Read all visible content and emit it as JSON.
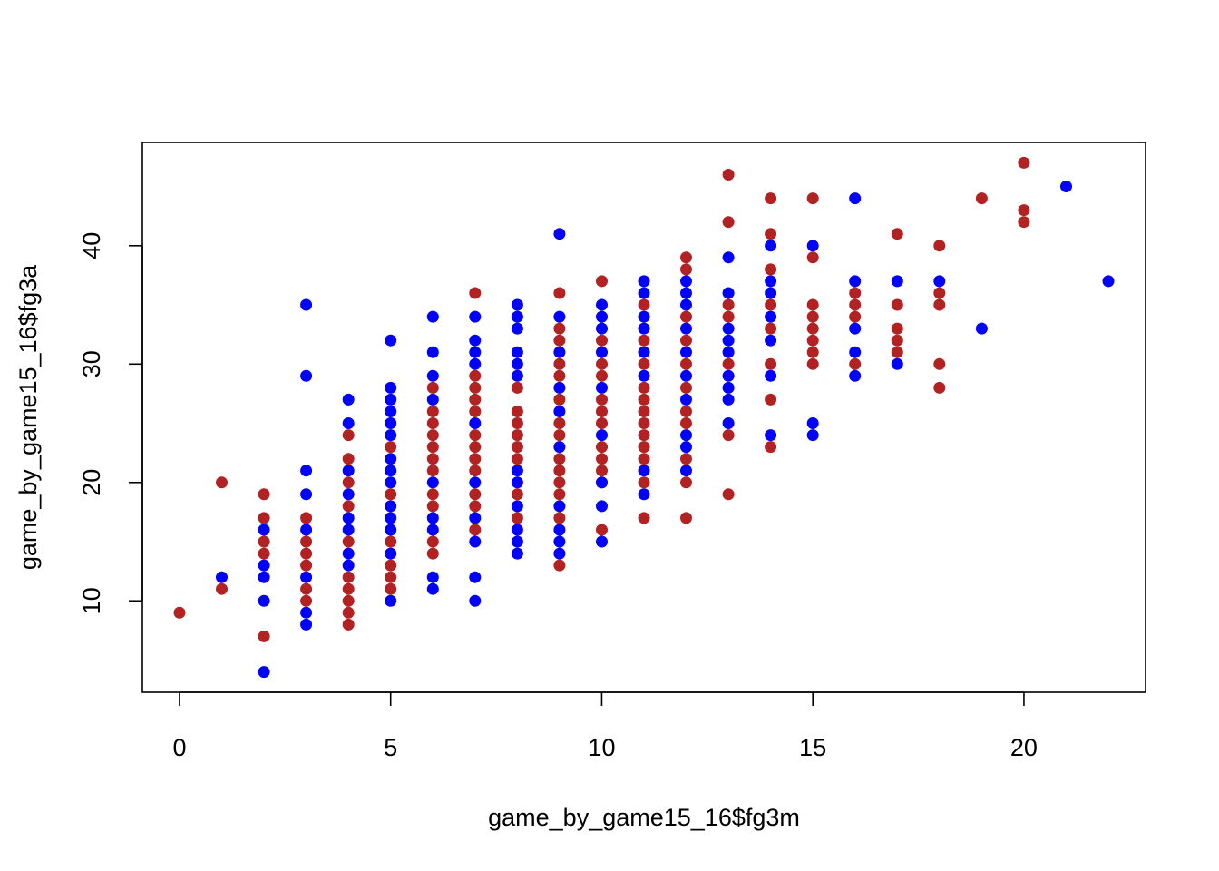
{
  "chart_data": {
    "type": "scatter",
    "title": "",
    "xlabel": "game_by_game15_16$fg3m",
    "ylabel": "game_by_game15_16$fg3a",
    "xlim": [
      -0.88,
      22.88
    ],
    "ylim": [
      2.28,
      48.72
    ],
    "xticks": [
      0,
      5,
      10,
      15,
      20
    ],
    "yticks": [
      10,
      20,
      30,
      40
    ],
    "grid": false,
    "legend": "none",
    "series": [
      {
        "color": "#B22222",
        "points": [
          [
            0,
            9
          ],
          [
            1,
            20
          ],
          [
            1,
            11
          ],
          [
            2,
            19
          ],
          [
            2,
            17
          ],
          [
            2,
            15
          ],
          [
            2,
            14
          ],
          [
            2,
            12
          ],
          [
            2,
            7
          ],
          [
            3,
            17
          ],
          [
            3,
            15
          ],
          [
            3,
            14
          ],
          [
            3,
            13
          ],
          [
            3,
            11
          ],
          [
            3,
            10
          ],
          [
            4,
            24
          ],
          [
            4,
            22
          ],
          [
            4,
            20
          ],
          [
            4,
            18
          ],
          [
            4,
            15
          ],
          [
            4,
            12
          ],
          [
            4,
            11
          ],
          [
            4,
            10
          ],
          [
            4,
            9
          ],
          [
            4,
            8
          ],
          [
            5,
            23
          ],
          [
            5,
            19
          ],
          [
            5,
            15
          ],
          [
            5,
            13
          ],
          [
            5,
            12
          ],
          [
            5,
            11
          ],
          [
            6,
            28
          ],
          [
            6,
            26
          ],
          [
            6,
            25
          ],
          [
            6,
            24
          ],
          [
            6,
            23
          ],
          [
            6,
            22
          ],
          [
            6,
            21
          ],
          [
            6,
            19
          ],
          [
            6,
            18
          ],
          [
            6,
            15
          ],
          [
            6,
            14
          ],
          [
            7,
            36
          ],
          [
            7,
            29
          ],
          [
            7,
            28
          ],
          [
            7,
            27
          ],
          [
            7,
            26
          ],
          [
            7,
            24
          ],
          [
            7,
            23
          ],
          [
            7,
            22
          ],
          [
            7,
            21
          ],
          [
            7,
            19
          ],
          [
            7,
            18
          ],
          [
            7,
            16
          ],
          [
            8,
            28
          ],
          [
            8,
            26
          ],
          [
            8,
            25
          ],
          [
            8,
            24
          ],
          [
            8,
            23
          ],
          [
            8,
            22
          ],
          [
            8,
            19
          ],
          [
            8,
            17
          ],
          [
            9,
            36
          ],
          [
            9,
            33
          ],
          [
            9,
            32
          ],
          [
            9,
            30
          ],
          [
            9,
            29
          ],
          [
            9,
            27
          ],
          [
            9,
            25
          ],
          [
            9,
            24
          ],
          [
            9,
            22
          ],
          [
            9,
            21
          ],
          [
            9,
            20
          ],
          [
            9,
            19
          ],
          [
            9,
            17
          ],
          [
            9,
            13
          ],
          [
            10,
            37
          ],
          [
            10,
            32
          ],
          [
            10,
            30
          ],
          [
            10,
            29
          ],
          [
            10,
            27
          ],
          [
            10,
            26
          ],
          [
            10,
            25
          ],
          [
            10,
            23
          ],
          [
            10,
            22
          ],
          [
            10,
            21
          ],
          [
            10,
            20
          ],
          [
            10,
            16
          ],
          [
            11,
            35
          ],
          [
            11,
            32
          ],
          [
            11,
            30
          ],
          [
            11,
            28
          ],
          [
            11,
            27
          ],
          [
            11,
            26
          ],
          [
            11,
            25
          ],
          [
            11,
            24
          ],
          [
            11,
            23
          ],
          [
            11,
            22
          ],
          [
            11,
            20
          ],
          [
            11,
            17
          ],
          [
            12,
            39
          ],
          [
            12,
            38
          ],
          [
            12,
            34
          ],
          [
            12,
            32
          ],
          [
            12,
            30
          ],
          [
            12,
            28
          ],
          [
            12,
            26
          ],
          [
            12,
            25
          ],
          [
            12,
            22
          ],
          [
            12,
            20
          ],
          [
            12,
            17
          ],
          [
            13,
            46
          ],
          [
            13,
            42
          ],
          [
            13,
            35
          ],
          [
            13,
            34
          ],
          [
            13,
            30
          ],
          [
            13,
            24
          ],
          [
            13,
            19
          ],
          [
            14,
            44
          ],
          [
            14,
            41
          ],
          [
            14,
            38
          ],
          [
            14,
            35
          ],
          [
            14,
            33
          ],
          [
            14,
            30
          ],
          [
            14,
            27
          ],
          [
            14,
            23
          ],
          [
            15,
            44
          ],
          [
            15,
            39
          ],
          [
            15,
            35
          ],
          [
            15,
            34
          ],
          [
            15,
            33
          ],
          [
            15,
            32
          ],
          [
            15,
            31
          ],
          [
            15,
            30
          ],
          [
            16,
            36
          ],
          [
            16,
            35
          ],
          [
            16,
            34
          ],
          [
            16,
            30
          ],
          [
            17,
            41
          ],
          [
            17,
            35
          ],
          [
            17,
            33
          ],
          [
            17,
            32
          ],
          [
            17,
            31
          ],
          [
            18,
            40
          ],
          [
            18,
            36
          ],
          [
            18,
            35
          ],
          [
            18,
            30
          ],
          [
            18,
            28
          ],
          [
            19,
            44
          ],
          [
            20,
            47
          ],
          [
            20,
            43
          ],
          [
            20,
            42
          ]
        ]
      },
      {
        "color": "#0000FF",
        "points": [
          [
            1,
            12
          ],
          [
            2,
            16
          ],
          [
            2,
            13
          ],
          [
            2,
            12
          ],
          [
            2,
            10
          ],
          [
            2,
            4
          ],
          [
            3,
            35
          ],
          [
            3,
            29
          ],
          [
            3,
            21
          ],
          [
            3,
            19
          ],
          [
            3,
            16
          ],
          [
            3,
            12
          ],
          [
            3,
            9
          ],
          [
            3,
            8
          ],
          [
            4,
            27
          ],
          [
            4,
            25
          ],
          [
            4,
            21
          ],
          [
            4,
            19
          ],
          [
            4,
            17
          ],
          [
            4,
            16
          ],
          [
            4,
            14
          ],
          [
            4,
            13
          ],
          [
            5,
            32
          ],
          [
            5,
            28
          ],
          [
            5,
            27
          ],
          [
            5,
            26
          ],
          [
            5,
            25
          ],
          [
            5,
            24
          ],
          [
            5,
            22
          ],
          [
            5,
            21
          ],
          [
            5,
            20
          ],
          [
            5,
            18
          ],
          [
            5,
            17
          ],
          [
            5,
            16
          ],
          [
            5,
            14
          ],
          [
            5,
            10
          ],
          [
            6,
            34
          ],
          [
            6,
            31
          ],
          [
            6,
            29
          ],
          [
            6,
            27
          ],
          [
            6,
            20
          ],
          [
            6,
            17
          ],
          [
            6,
            16
          ],
          [
            6,
            12
          ],
          [
            6,
            11
          ],
          [
            7,
            34
          ],
          [
            7,
            32
          ],
          [
            7,
            31
          ],
          [
            7,
            30
          ],
          [
            7,
            25
          ],
          [
            7,
            20
          ],
          [
            7,
            17
          ],
          [
            7,
            15
          ],
          [
            7,
            12
          ],
          [
            7,
            10
          ],
          [
            8,
            35
          ],
          [
            8,
            34
          ],
          [
            8,
            33
          ],
          [
            8,
            31
          ],
          [
            8,
            30
          ],
          [
            8,
            29
          ],
          [
            8,
            21
          ],
          [
            8,
            20
          ],
          [
            8,
            18
          ],
          [
            8,
            16
          ],
          [
            8,
            15
          ],
          [
            8,
            14
          ],
          [
            9,
            41
          ],
          [
            9,
            34
          ],
          [
            9,
            31
          ],
          [
            9,
            28
          ],
          [
            9,
            26
          ],
          [
            9,
            23
          ],
          [
            9,
            18
          ],
          [
            9,
            16
          ],
          [
            9,
            15
          ],
          [
            9,
            14
          ],
          [
            10,
            35
          ],
          [
            10,
            34
          ],
          [
            10,
            33
          ],
          [
            10,
            31
          ],
          [
            10,
            28
          ],
          [
            10,
            24
          ],
          [
            10,
            20
          ],
          [
            10,
            18
          ],
          [
            10,
            15
          ],
          [
            11,
            37
          ],
          [
            11,
            36
          ],
          [
            11,
            34
          ],
          [
            11,
            33
          ],
          [
            11,
            31
          ],
          [
            11,
            29
          ],
          [
            11,
            21
          ],
          [
            11,
            19
          ],
          [
            12,
            37
          ],
          [
            12,
            36
          ],
          [
            12,
            35
          ],
          [
            12,
            33
          ],
          [
            12,
            31
          ],
          [
            12,
            29
          ],
          [
            12,
            27
          ],
          [
            12,
            24
          ],
          [
            12,
            23
          ],
          [
            12,
            21
          ],
          [
            13,
            39
          ],
          [
            13,
            36
          ],
          [
            13,
            33
          ],
          [
            13,
            32
          ],
          [
            13,
            31
          ],
          [
            13,
            29
          ],
          [
            13,
            28
          ],
          [
            13,
            27
          ],
          [
            13,
            25
          ],
          [
            14,
            40
          ],
          [
            14,
            37
          ],
          [
            14,
            36
          ],
          [
            14,
            34
          ],
          [
            14,
            32
          ],
          [
            14,
            29
          ],
          [
            14,
            24
          ],
          [
            15,
            40
          ],
          [
            15,
            25
          ],
          [
            15,
            24
          ],
          [
            16,
            44
          ],
          [
            16,
            37
          ],
          [
            16,
            33
          ],
          [
            16,
            31
          ],
          [
            16,
            29
          ],
          [
            17,
            37
          ],
          [
            17,
            30
          ],
          [
            18,
            37
          ],
          [
            19,
            33
          ],
          [
            21,
            45
          ],
          [
            22,
            37
          ]
        ]
      }
    ]
  }
}
